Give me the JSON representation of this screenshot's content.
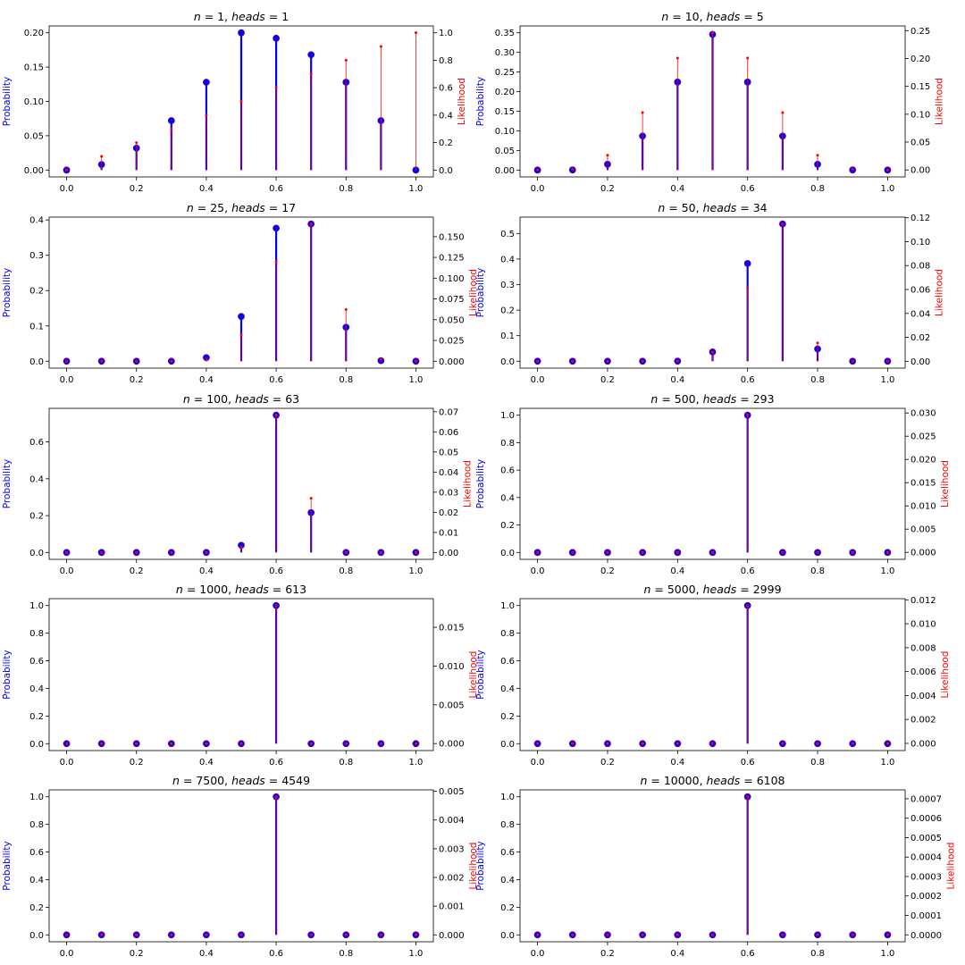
{
  "figure": {
    "ylabel_left": "Probability",
    "ylabel_right": "Likelihood"
  },
  "colors": {
    "prior_posterior": "#0000ff",
    "likelihood": "#ff0000",
    "axis": "#000000",
    "overlap": "#7f007f"
  },
  "chart_data": [
    {
      "type": "stem",
      "title_n": "1",
      "title_heads": "1",
      "x": [
        0.0,
        0.1,
        0.2,
        0.3,
        0.4,
        0.5,
        0.6,
        0.7,
        0.8,
        0.9,
        1.0
      ],
      "x_tick_labels": [
        "0.0",
        "0.2",
        "0.4",
        "0.6",
        "0.8",
        "1.0"
      ],
      "series": [
        {
          "name": "Probability",
          "axis": "left",
          "values": [
            0,
            0.008,
            0.032,
            0.072,
            0.128,
            0.2,
            0.192,
            0.168,
            0.128,
            0.072,
            0
          ]
        },
        {
          "name": "Likelihood",
          "axis": "right",
          "values": [
            0,
            0.1,
            0.2,
            0.3,
            0.4,
            0.5,
            0.6,
            0.7,
            0.8,
            0.9,
            1.0
          ]
        }
      ],
      "ylim_left": [
        -0.01,
        0.21
      ],
      "yticks_left": [
        "0.00",
        "0.05",
        "0.10",
        "0.15",
        "0.20"
      ],
      "ylim_right": [
        -0.05,
        1.05
      ],
      "yticks_right": [
        "0.0",
        "0.2",
        "0.4",
        "0.6",
        "0.8",
        "1.0"
      ]
    },
    {
      "type": "stem",
      "title_n": "10",
      "title_heads": "5",
      "x": [
        0.0,
        0.1,
        0.2,
        0.3,
        0.4,
        0.5,
        0.6,
        0.7,
        0.8,
        0.9,
        1.0
      ],
      "x_tick_labels": [
        "0.0",
        "0.2",
        "0.4",
        "0.6",
        "0.8",
        "1.0"
      ],
      "series": [
        {
          "name": "Probability",
          "axis": "left",
          "values": [
            0,
            0.0003,
            0.0147,
            0.0866,
            0.2244,
            0.3459,
            0.2244,
            0.0866,
            0.0147,
            0.0003,
            0
          ]
        },
        {
          "name": "Likelihood",
          "axis": "right",
          "values": [
            0,
            0.0015,
            0.0264,
            0.1029,
            0.2007,
            0.2461,
            0.2007,
            0.1029,
            0.0264,
            0.0015,
            0
          ]
        }
      ],
      "ylim_left": [
        -0.0175,
        0.3675
      ],
      "yticks_left": [
        "0.00",
        "0.05",
        "0.10",
        "0.15",
        "0.20",
        "0.25",
        "0.30",
        "0.35"
      ],
      "ylim_right": [
        -0.0125,
        0.2585
      ],
      "yticks_right": [
        "0.00",
        "0.05",
        "0.10",
        "0.15",
        "0.20",
        "0.25"
      ]
    },
    {
      "type": "stem",
      "title_n": "25",
      "title_heads": "17",
      "x": [
        0.0,
        0.1,
        0.2,
        0.3,
        0.4,
        0.5,
        0.6,
        0.7,
        0.8,
        0.9,
        1.0
      ],
      "x_tick_labels": [
        "0.0",
        "0.2",
        "0.4",
        "0.6",
        "0.8",
        "1.0"
      ],
      "series": [
        {
          "name": "Probability",
          "axis": "left",
          "values": [
            0,
            0,
            0,
            0.0001,
            0.0101,
            0.1267,
            0.3766,
            0.3886,
            0.0963,
            0.0017,
            0
          ]
        },
        {
          "name": "Likelihood",
          "axis": "right",
          "values": [
            0,
            0,
            0,
            0.0,
            0.0016,
            0.032,
            0.12,
            0.1651,
            0.0623,
            0.0024,
            0
          ]
        }
      ],
      "ylim_left": [
        -0.0195,
        0.408
      ],
      "yticks_left": [
        "0.0",
        "0.1",
        "0.2",
        "0.3",
        "0.4"
      ],
      "ylim_right": [
        -0.0083,
        0.1735
      ],
      "yticks_right": [
        "0.000",
        "0.025",
        "0.050",
        "0.075",
        "0.100",
        "0.125",
        "0.150"
      ]
    },
    {
      "type": "stem",
      "title_n": "50",
      "title_heads": "34",
      "x": [
        0.0,
        0.1,
        0.2,
        0.3,
        0.4,
        0.5,
        0.6,
        0.7,
        0.8,
        0.9,
        1.0
      ],
      "x_tick_labels": [
        "0.0",
        "0.2",
        "0.4",
        "0.6",
        "0.8",
        "1.0"
      ],
      "series": [
        {
          "name": "Probability",
          "axis": "left",
          "values": [
            0,
            0,
            0,
            0,
            0.0003,
            0.0363,
            0.3824,
            0.5374,
            0.0481,
            0,
            0
          ]
        },
        {
          "name": "Likelihood",
          "axis": "right",
          "values": [
            0,
            0,
            0,
            0,
            0.0001,
            0.0077,
            0.061,
            0.1148,
            0.0154,
            0,
            0
          ]
        }
      ],
      "ylim_left": [
        -0.027,
        0.564
      ],
      "yticks_left": [
        "0.0",
        "0.1",
        "0.2",
        "0.3",
        "0.4",
        "0.5"
      ],
      "ylim_right": [
        -0.0057,
        0.1205
      ],
      "yticks_right": [
        "0.00",
        "0.02",
        "0.04",
        "0.06",
        "0.08",
        "0.10",
        "0.12"
      ]
    },
    {
      "type": "stem",
      "title_n": "100",
      "title_heads": "63",
      "x": [
        0.0,
        0.1,
        0.2,
        0.3,
        0.4,
        0.5,
        0.6,
        0.7,
        0.8,
        0.9,
        1.0
      ],
      "x_tick_labels": [
        "0.0",
        "0.2",
        "0.4",
        "0.6",
        "0.8",
        "1.0"
      ],
      "series": [
        {
          "name": "Probability",
          "axis": "left",
          "values": [
            0,
            0,
            0,
            0,
            0,
            0.039,
            0.745,
            0.216,
            0,
            0,
            0
          ]
        },
        {
          "name": "Likelihood",
          "axis": "right",
          "values": [
            0,
            0,
            0,
            0,
            0,
            0.0027,
            0.0683,
            0.027,
            0,
            0,
            0
          ]
        }
      ],
      "ylim_left": [
        -0.0373,
        0.7823
      ],
      "yticks_left": [
        "0.0",
        "0.2",
        "0.4",
        "0.6"
      ],
      "ylim_right": [
        -0.0034,
        0.0717
      ],
      "yticks_right": [
        "0.00",
        "0.01",
        "0.02",
        "0.03",
        "0.04",
        "0.05",
        "0.06",
        "0.07"
      ]
    },
    {
      "type": "stem",
      "title_n": "500",
      "title_heads": "293",
      "x": [
        0.0,
        0.1,
        0.2,
        0.3,
        0.4,
        0.5,
        0.6,
        0.7,
        0.8,
        0.9,
        1.0
      ],
      "x_tick_labels": [
        "0.0",
        "0.2",
        "0.4",
        "0.6",
        "0.8",
        "1.0"
      ],
      "series": [
        {
          "name": "Probability",
          "axis": "left",
          "values": [
            0,
            0,
            0,
            0,
            0,
            0,
            1.0,
            0,
            0,
            0,
            0
          ]
        },
        {
          "name": "Likelihood",
          "axis": "right",
          "values": [
            0,
            0,
            0,
            0,
            0,
            0,
            0.0296,
            0,
            0,
            0,
            0
          ]
        }
      ],
      "ylim_left": [
        -0.05,
        1.05
      ],
      "yticks_left": [
        "0.0",
        "0.2",
        "0.4",
        "0.6",
        "0.8",
        "1.0"
      ],
      "ylim_right": [
        -0.0015,
        0.031
      ],
      "yticks_right": [
        "0.000",
        "0.005",
        "0.010",
        "0.015",
        "0.020",
        "0.025",
        "0.030"
      ]
    },
    {
      "type": "stem",
      "title_n": "1000",
      "title_heads": "613",
      "x": [
        0.0,
        0.1,
        0.2,
        0.3,
        0.4,
        0.5,
        0.6,
        0.7,
        0.8,
        0.9,
        1.0
      ],
      "x_tick_labels": [
        "0.0",
        "0.2",
        "0.4",
        "0.6",
        "0.8",
        "1.0"
      ],
      "series": [
        {
          "name": "Probability",
          "axis": "left",
          "values": [
            0,
            0,
            0,
            0,
            0,
            0,
            1.0,
            0,
            0,
            0,
            0
          ]
        },
        {
          "name": "Likelihood",
          "axis": "right",
          "values": [
            0,
            0,
            0,
            0,
            0,
            0,
            0.0178,
            0,
            0,
            0,
            0
          ]
        }
      ],
      "ylim_left": [
        -0.05,
        1.05
      ],
      "yticks_left": [
        "0.0",
        "0.2",
        "0.4",
        "0.6",
        "0.8",
        "1.0"
      ],
      "ylim_right": [
        -0.0009,
        0.0187
      ],
      "yticks_right": [
        "0.000",
        "0.005",
        "0.010",
        "0.015"
      ]
    },
    {
      "type": "stem",
      "title_n": "5000",
      "title_heads": "2999",
      "x": [
        0.0,
        0.1,
        0.2,
        0.3,
        0.4,
        0.5,
        0.6,
        0.7,
        0.8,
        0.9,
        1.0
      ],
      "x_tick_labels": [
        "0.0",
        "0.2",
        "0.4",
        "0.6",
        "0.8",
        "1.0"
      ],
      "series": [
        {
          "name": "Probability",
          "axis": "left",
          "values": [
            0,
            0,
            0,
            0,
            0,
            0,
            1.0,
            0,
            0,
            0,
            0
          ]
        },
        {
          "name": "Likelihood",
          "axis": "right",
          "values": [
            0,
            0,
            0,
            0,
            0,
            0,
            0.0115,
            0,
            0,
            0,
            0
          ]
        }
      ],
      "ylim_left": [
        -0.05,
        1.05
      ],
      "yticks_left": [
        "0.0",
        "0.2",
        "0.4",
        "0.6",
        "0.8",
        "1.0"
      ],
      "ylim_right": [
        -0.0006,
        0.0121
      ],
      "yticks_right": [
        "0.000",
        "0.002",
        "0.004",
        "0.006",
        "0.008",
        "0.010",
        "0.012"
      ]
    },
    {
      "type": "stem",
      "title_n": "7500",
      "title_heads": "4549",
      "x": [
        0.0,
        0.1,
        0.2,
        0.3,
        0.4,
        0.5,
        0.6,
        0.7,
        0.8,
        0.9,
        1.0
      ],
      "x_tick_labels": [
        "0.0",
        "0.2",
        "0.4",
        "0.6",
        "0.8",
        "1.0"
      ],
      "series": [
        {
          "name": "Probability",
          "axis": "left",
          "values": [
            0,
            0,
            0,
            0,
            0,
            0,
            1.0,
            0,
            0,
            0,
            0
          ]
        },
        {
          "name": "Likelihood",
          "axis": "right",
          "values": [
            0,
            0,
            0,
            0,
            0,
            0,
            0.0048,
            0,
            0,
            0,
            0
          ]
        }
      ],
      "ylim_left": [
        -0.05,
        1.05
      ],
      "yticks_left": [
        "0.0",
        "0.2",
        "0.4",
        "0.6",
        "0.8",
        "1.0"
      ],
      "ylim_right": [
        -0.00024,
        0.00505
      ],
      "yticks_right": [
        "0.000",
        "0.001",
        "0.002",
        "0.003",
        "0.004",
        "0.005"
      ]
    },
    {
      "type": "stem",
      "title_n": "10000",
      "title_heads": "6108",
      "x": [
        0.0,
        0.1,
        0.2,
        0.3,
        0.4,
        0.5,
        0.6,
        0.7,
        0.8,
        0.9,
        1.0
      ],
      "x_tick_labels": [
        "0.0",
        "0.2",
        "0.4",
        "0.6",
        "0.8",
        "1.0"
      ],
      "series": [
        {
          "name": "Probability",
          "axis": "left",
          "values": [
            0,
            0,
            0,
            0,
            0,
            0,
            1.0,
            0,
            0,
            0,
            0
          ]
        },
        {
          "name": "Likelihood",
          "axis": "right",
          "values": [
            0,
            0,
            0,
            0,
            0,
            0,
            0.00071,
            0,
            0,
            0,
            0
          ]
        }
      ],
      "ylim_left": [
        -0.05,
        1.05
      ],
      "yticks_left": [
        "0.0",
        "0.2",
        "0.4",
        "0.6",
        "0.8",
        "1.0"
      ],
      "ylim_right": [
        -3.55e-05,
        0.0007455
      ],
      "yticks_right": [
        "0.0000",
        "0.0001",
        "0.0002",
        "0.0003",
        "0.0004",
        "0.0005",
        "0.0006",
        "0.0007"
      ]
    }
  ]
}
